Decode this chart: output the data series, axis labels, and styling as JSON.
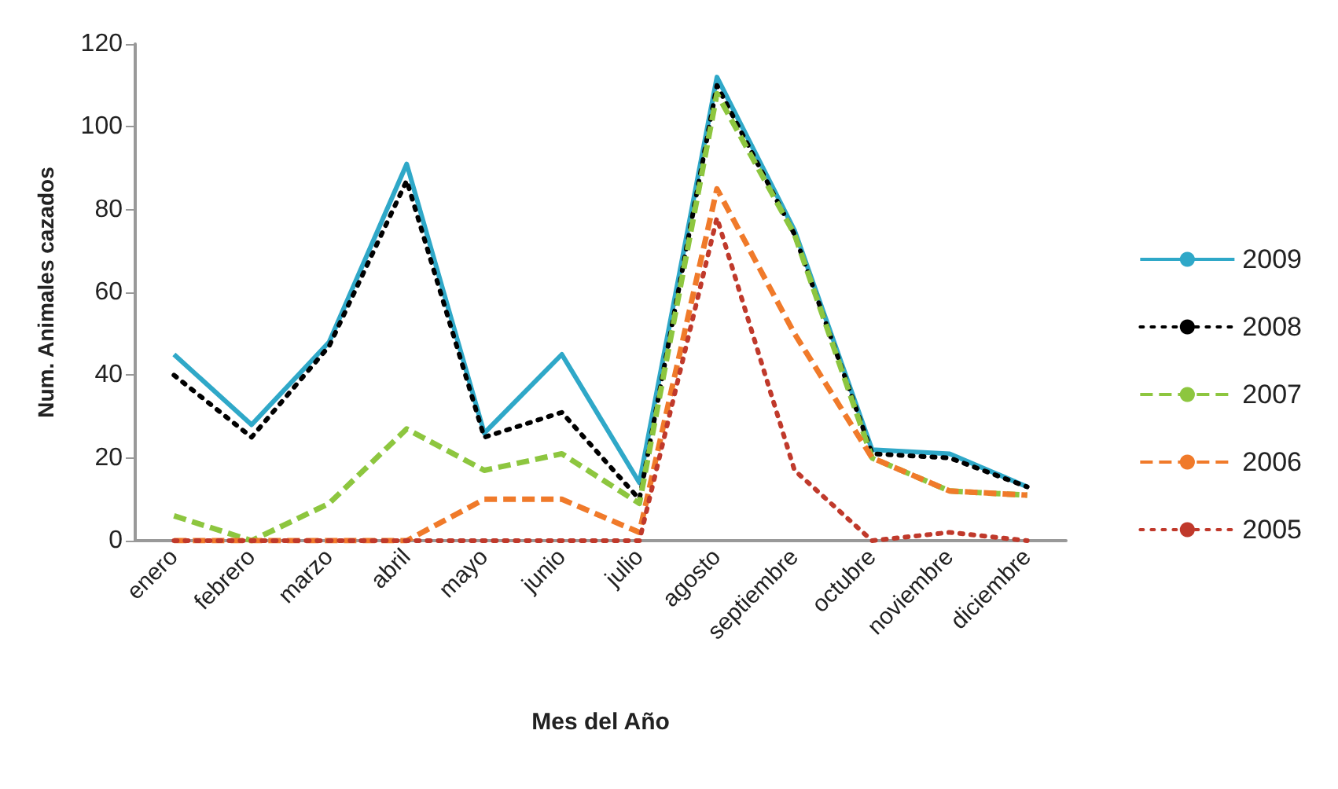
{
  "chart_data": {
    "type": "line",
    "xlabel": "Mes del Año",
    "ylabel": "Num. Animales cazados",
    "categories": [
      "enero",
      "febrero",
      "marzo",
      "abril",
      "mayo",
      "junio",
      "julio",
      "agosto",
      "septiembre",
      "octubre",
      "noviembre",
      "diciembre"
    ],
    "series": [
      {
        "name": "2009",
        "color": "#2fa8c8",
        "line_style": "solid",
        "values": [
          45,
          28,
          48,
          91,
          26,
          45,
          14,
          112,
          75,
          22,
          21,
          13
        ]
      },
      {
        "name": "2008",
        "color": "#000000",
        "line_style": "dotted",
        "values": [
          40,
          25,
          47,
          87,
          25,
          31,
          10,
          110,
          74,
          21,
          20,
          13
        ]
      },
      {
        "name": "2007",
        "color": "#8dc63f",
        "line_style": "dashed",
        "values": [
          6,
          0,
          9,
          27,
          17,
          21,
          9,
          108,
          74,
          20,
          12,
          11
        ]
      },
      {
        "name": "2006",
        "color": "#f07a2a",
        "line_style": "dashed",
        "values": [
          0,
          0,
          0,
          0,
          10,
          10,
          2,
          85,
          50,
          20,
          12,
          11
        ]
      },
      {
        "name": "2005",
        "color": "#c0392b",
        "line_style": "dotted",
        "values": [
          0,
          0,
          0,
          0,
          0,
          0,
          0,
          78,
          17,
          0,
          2,
          0
        ]
      }
    ],
    "ylim": [
      0,
      120
    ],
    "yticks": [
      0,
      20,
      40,
      60,
      80,
      100,
      120
    ],
    "grid": false,
    "legend": "right",
    "marker": "none"
  }
}
